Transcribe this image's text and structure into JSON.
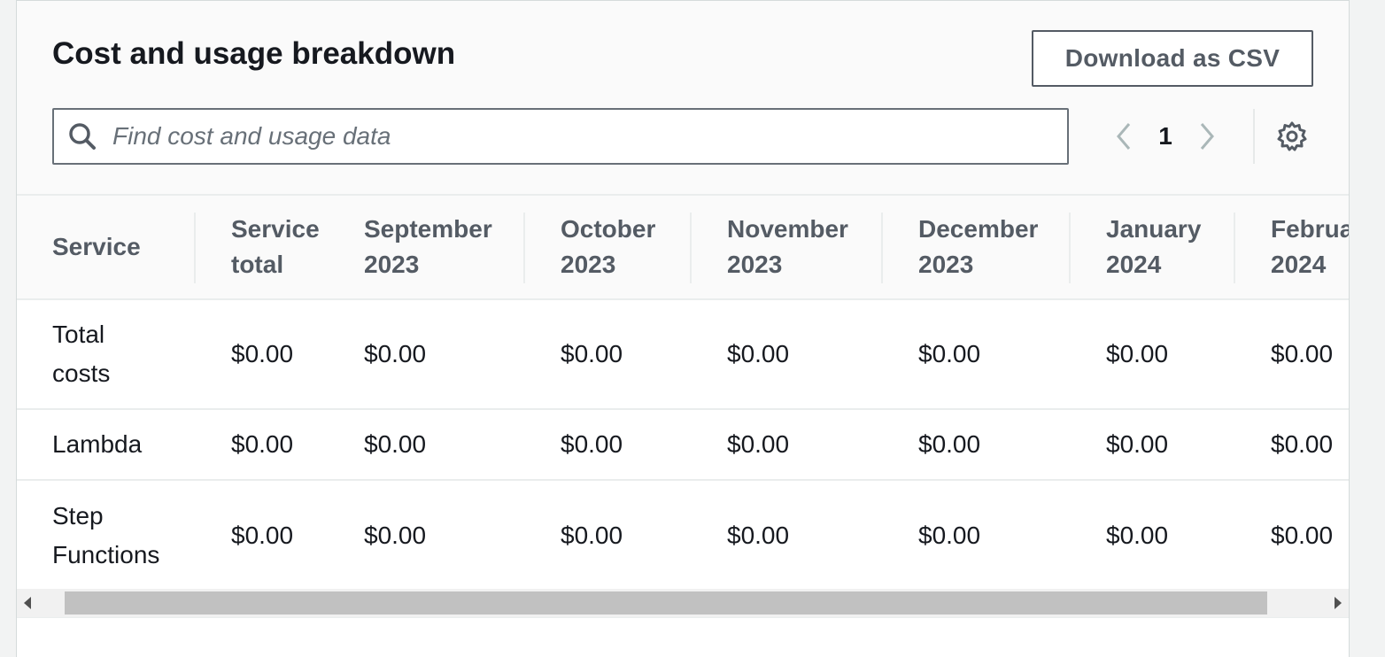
{
  "header": {
    "title": "Cost and usage breakdown",
    "download_label": "Download as CSV"
  },
  "search": {
    "placeholder": "Find cost and usage data",
    "value": ""
  },
  "pagination": {
    "current_page": "1"
  },
  "icons": {
    "search": "search-icon",
    "prev": "chevron-left-icon",
    "next": "chevron-right-icon",
    "settings": "gear-icon",
    "scroll_left": "caret-left-icon",
    "scroll_right": "caret-right-icon"
  },
  "table": {
    "columns": [
      {
        "line1": "Service",
        "line2": ""
      },
      {
        "line1": "Service",
        "line2": "total"
      },
      {
        "line1": "September",
        "line2": "2023"
      },
      {
        "line1": "October",
        "line2": "2023"
      },
      {
        "line1": "November",
        "line2": "2023"
      },
      {
        "line1": "December",
        "line2": "2023"
      },
      {
        "line1": "January",
        "line2": "2024"
      },
      {
        "line1": "February",
        "line2": "2024"
      }
    ],
    "rows": [
      {
        "service_line1": "Total",
        "service_line2": "costs",
        "values": [
          "$0.00",
          "$0.00",
          "$0.00",
          "$0.00",
          "$0.00",
          "$0.00",
          "$0.00"
        ]
      },
      {
        "service_line1": "Lambda",
        "service_line2": "",
        "values": [
          "$0.00",
          "$0.00",
          "$0.00",
          "$0.00",
          "$0.00",
          "$0.00",
          "$0.00"
        ]
      },
      {
        "service_line1": "Step",
        "service_line2": "Functions",
        "values": [
          "$0.00",
          "$0.00",
          "$0.00",
          "$0.00",
          "$0.00",
          "$0.00",
          "$0.00"
        ]
      }
    ]
  },
  "colors": {
    "text_primary": "#16191f",
    "text_secondary": "#545b64",
    "border": "#687078",
    "panel_bg": "#fafafa"
  }
}
